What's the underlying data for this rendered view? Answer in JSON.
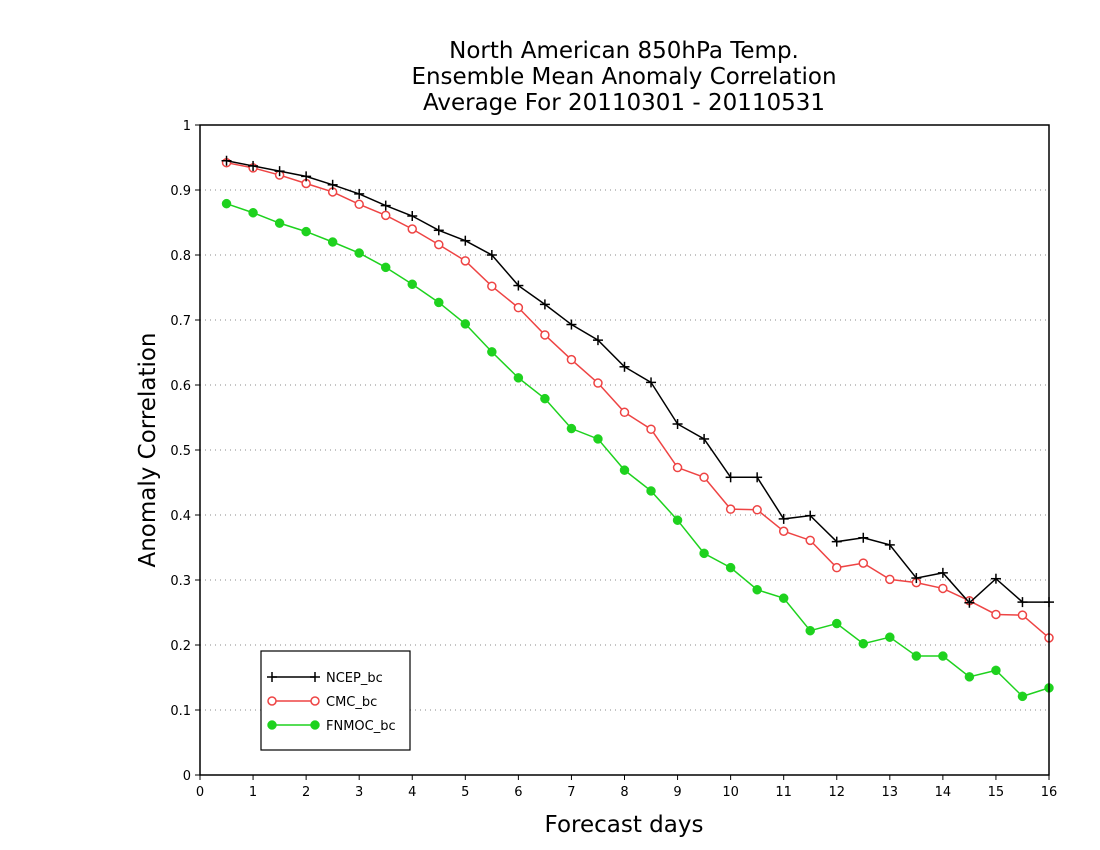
{
  "chart_data": {
    "type": "line",
    "title_lines": [
      "North American 850hPa Temp.",
      "Ensemble Mean Anomaly Correlation",
      "Average For 20110301 - 20110531"
    ],
    "xlabel": "Forecast days",
    "ylabel": "Anomaly Correlation",
    "xlim": [
      0,
      16
    ],
    "ylim": [
      0,
      1
    ],
    "xticks": [
      0,
      1,
      2,
      3,
      4,
      5,
      6,
      7,
      8,
      9,
      10,
      11,
      12,
      13,
      14,
      15,
      16
    ],
    "yticks": [
      0,
      0.1,
      0.2,
      0.3,
      0.4,
      0.5,
      0.6,
      0.7,
      0.8,
      0.9,
      1
    ],
    "ytick_labels": [
      "0",
      "0.1",
      "0.2",
      "0.3",
      "0.4",
      "0.5",
      "0.6",
      "0.7",
      "0.8",
      "0.9",
      "1"
    ],
    "grid": "horizontal dotted",
    "legend_position": "bottom-left",
    "x": [
      0.5,
      1,
      1.5,
      2,
      2.5,
      3,
      3.5,
      4,
      4.5,
      5,
      5.5,
      6,
      6.5,
      7,
      7.5,
      8,
      8.5,
      9,
      9.5,
      10,
      10.5,
      11,
      11.5,
      12,
      12.5,
      13,
      13.5,
      14,
      14.5,
      15,
      15.5,
      16
    ],
    "series": [
      {
        "name": "NCEP_bc",
        "color": "#000000",
        "marker": "plus",
        "values": [
          0.945,
          0.937,
          0.929,
          0.921,
          0.908,
          0.894,
          0.876,
          0.86,
          0.838,
          0.822,
          0.8,
          0.753,
          0.724,
          0.693,
          0.669,
          0.628,
          0.604,
          0.54,
          0.517,
          0.458,
          0.458,
          0.394,
          0.399,
          0.359,
          0.365,
          0.354,
          0.303,
          0.311,
          0.265,
          0.302,
          0.266,
          0.266
        ]
      },
      {
        "name": "CMC_bc",
        "color": "#ee4444",
        "marker": "open-circle",
        "values": [
          0.942,
          0.934,
          0.923,
          0.91,
          0.897,
          0.878,
          0.861,
          0.84,
          0.816,
          0.791,
          0.752,
          0.719,
          0.677,
          0.639,
          0.603,
          0.558,
          0.532,
          0.473,
          0.458,
          0.409,
          0.408,
          0.375,
          0.361,
          0.319,
          0.326,
          0.301,
          0.296,
          0.287,
          0.268,
          0.247,
          0.246,
          0.211
        ]
      },
      {
        "name": "FNMOC_bc",
        "color": "#1ed21e",
        "marker": "filled-circle",
        "values": [
          0.879,
          0.865,
          0.849,
          0.836,
          0.82,
          0.803,
          0.781,
          0.755,
          0.727,
          0.694,
          0.651,
          0.611,
          0.579,
          0.533,
          0.517,
          0.469,
          0.437,
          0.392,
          0.341,
          0.319,
          0.285,
          0.272,
          0.222,
          0.233,
          0.202,
          0.212,
          0.183,
          0.183,
          0.151,
          0.161,
          0.121,
          0.134
        ]
      }
    ]
  }
}
